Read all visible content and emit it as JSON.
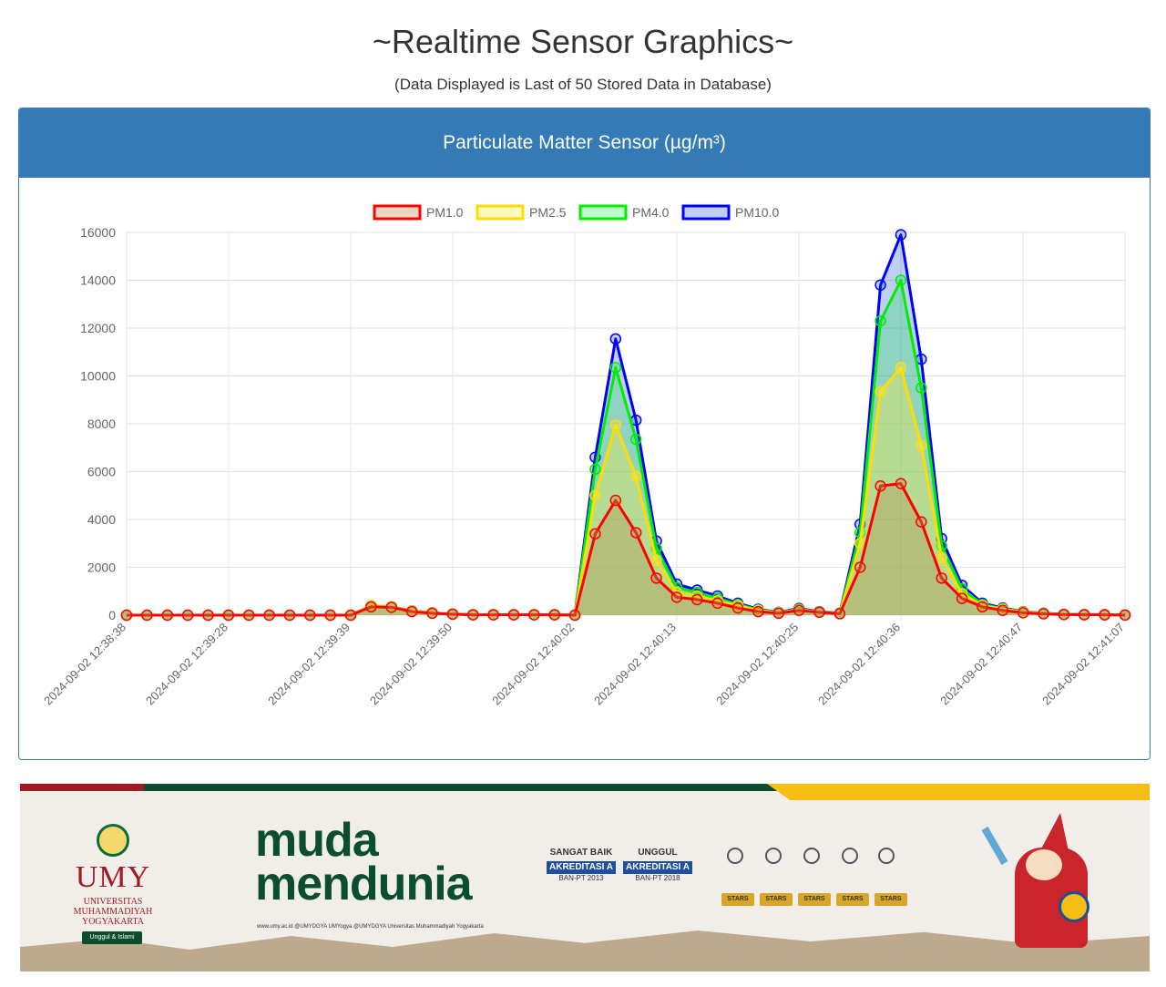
{
  "page": {
    "title": "~Realtime Sensor Graphics~",
    "subtitle": "(Data Displayed is Last of 50 Stored Data in Database)"
  },
  "panel": {
    "heading": "Particulate Matter Sensor (µg/m³)"
  },
  "chart_data": {
    "type": "area",
    "title": "",
    "xlabel": "",
    "ylabel": "",
    "ylim": [
      0,
      16000
    ],
    "yticks": [
      0,
      2000,
      4000,
      6000,
      8000,
      10000,
      12000,
      14000,
      16000
    ],
    "grid": true,
    "legend_position": "top",
    "xtick_labels": [
      "2024-09-02 12:38:38",
      "2024-09-02 12:39:28",
      "2024-09-02 12:39:39",
      "2024-09-02 12:39:50",
      "2024-09-02 12:40:02",
      "2024-09-02 12:40:13",
      "2024-09-02 12:40:25",
      "2024-09-02 12:40:36",
      "2024-09-02 12:40:47",
      "2024-09-02 12:41:07"
    ],
    "point_count": 50,
    "series": [
      {
        "name": "PM10.0",
        "color": "#0000ff",
        "fill": "rgba(0,60,200,0.25)",
        "values": [
          0,
          0,
          0,
          0,
          0,
          0,
          0,
          0,
          0,
          0,
          0,
          0,
          400,
          350,
          180,
          100,
          50,
          20,
          20,
          20,
          20,
          20,
          0,
          6600,
          11550,
          8150,
          3100,
          1300,
          1050,
          800,
          500,
          250,
          120,
          280,
          150,
          80,
          3800,
          13800,
          15900,
          10700,
          3200,
          1250,
          500,
          300,
          150,
          80,
          40,
          30,
          20,
          10
        ]
      },
      {
        "name": "PM4.0",
        "color": "#00ee00",
        "fill": "rgba(0,230,60,0.25)",
        "values": [
          0,
          0,
          0,
          0,
          0,
          0,
          0,
          0,
          0,
          0,
          0,
          0,
          400,
          350,
          180,
          100,
          50,
          20,
          20,
          20,
          20,
          20,
          0,
          6100,
          10350,
          7350,
          2800,
          1150,
          950,
          700,
          450,
          220,
          110,
          250,
          140,
          70,
          3450,
          12300,
          14000,
          9500,
          2900,
          1100,
          450,
          270,
          140,
          70,
          35,
          25,
          18,
          10
        ]
      },
      {
        "name": "PM2.5",
        "color": "#ffdd00",
        "fill": "rgba(255,235,60,0.35)",
        "values": [
          0,
          0,
          0,
          0,
          0,
          0,
          0,
          0,
          0,
          0,
          0,
          0,
          400,
          350,
          170,
          95,
          45,
          20,
          20,
          20,
          20,
          20,
          0,
          5000,
          7950,
          5800,
          2300,
          950,
          800,
          600,
          400,
          200,
          100,
          230,
          130,
          65,
          3000,
          9350,
          10350,
          7100,
          2400,
          900,
          400,
          250,
          130,
          65,
          30,
          22,
          15,
          8
        ]
      },
      {
        "name": "PM1.0",
        "color": "#ff0000",
        "fill": "rgba(180,140,80,0.35)",
        "values": [
          0,
          0,
          0,
          0,
          0,
          0,
          0,
          0,
          0,
          0,
          0,
          0,
          350,
          330,
          150,
          80,
          40,
          15,
          15,
          15,
          15,
          15,
          0,
          3400,
          4800,
          3450,
          1550,
          750,
          650,
          500,
          300,
          150,
          80,
          200,
          120,
          60,
          2000,
          5400,
          5500,
          3900,
          1550,
          700,
          350,
          200,
          100,
          55,
          25,
          18,
          12,
          6
        ]
      }
    ]
  },
  "banner": {
    "umy_name": "UMY",
    "umy_sub": "UNIVERSITAS MUHAMMADIYAH YOGYAKARTA",
    "umy_tag": "Unggul & Islami",
    "slogan_line1": "muda",
    "slogan_line2": "mendunia",
    "social": "www.umy.ac.id  @UMYDGYA  UMYogya  @UMYDGYA  Universitas Muhammadiyah Yogyakarta",
    "badge1_top": "SANGAT BAIK",
    "badge1_ribbon": "AKREDITASI A",
    "badge1_bottom": "BAN-PT 2013",
    "badge2_top": "UNGGUL",
    "badge2_ribbon": "AKREDITASI A",
    "badge2_bottom": "BAN-PT 2018",
    "stars_label": "STARS"
  }
}
